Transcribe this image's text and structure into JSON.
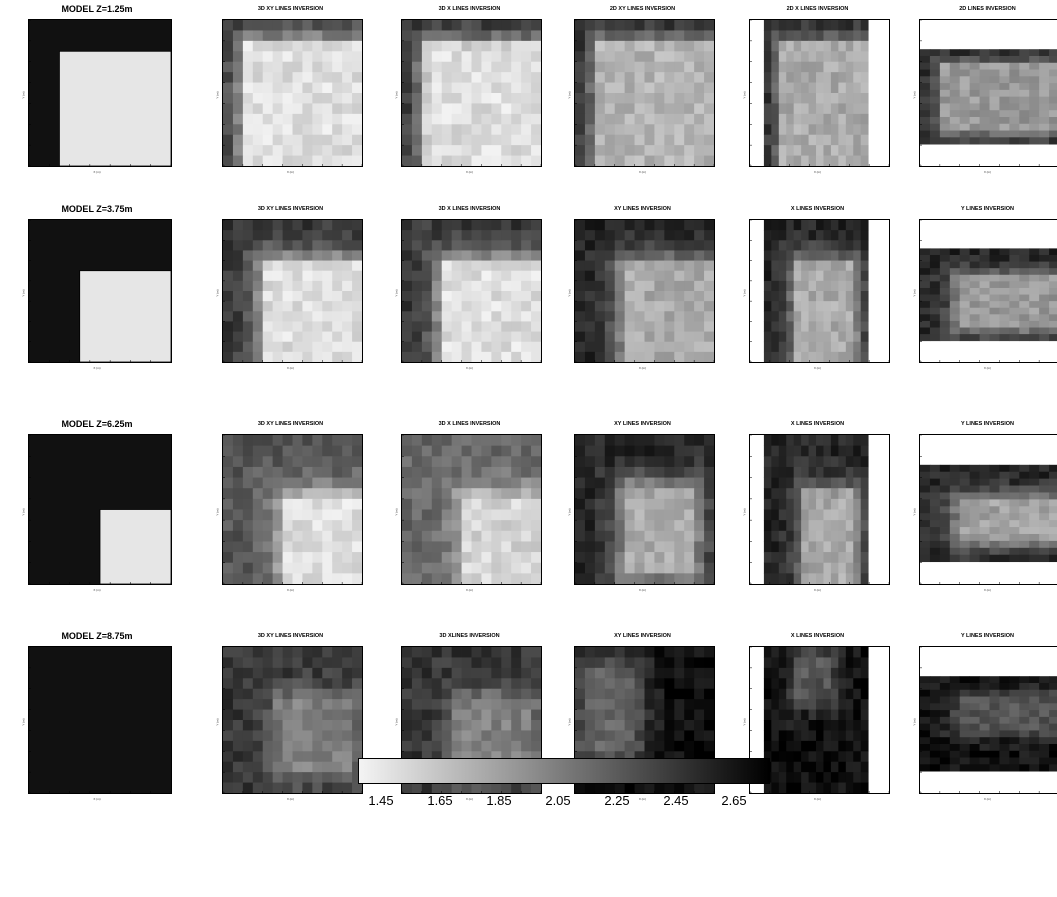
{
  "figure": {
    "panel_titles": [
      [
        "MODEL   Z=1.25m",
        "3D XY  LINES INVERSION",
        "3D X  LINES INVERSION",
        "2D XY  LINES INVERSION",
        "2D X LINES INVERSION",
        "2D LINES INVERSION"
      ],
      [
        "MODEL   Z=3.75m",
        "3D XY  LINES INVERSION",
        "3D X LINES INVERSION",
        "XY  LINES INVERSION",
        "X LINES INVERSION",
        "Y LINES INVERSION"
      ],
      [
        "MODEL   Z=6.25m",
        "3D XY  LINES INVERSION",
        "3D X LINES INVERSION",
        "XY  LINES INVERSION",
        "X LINES INVERSION",
        "Y LINES INVERSION"
      ],
      [
        "MODEL   Z=8.75m",
        "3D XY  LINES INVERSION",
        "3D XLINES INVERSION",
        "XY  LINES INVERSION",
        "X LINES INVERSION",
        "Y LINES INVERSION"
      ]
    ],
    "axis_x_label": "X (m)",
    "axis_y_label": "Y (m)"
  },
  "colorbar": {
    "tick_labels": [
      "1.45",
      "1.65",
      "1.85",
      "2.05",
      "2.25",
      "2.45",
      "2.65"
    ],
    "range": [
      1.37,
      2.8
    ],
    "colormap": [
      "#f4f4f4",
      "#000000"
    ]
  },
  "chart_data": {
    "type": "heatmap",
    "xlabel": "X (m)",
    "ylabel": "Y (m)",
    "xlim": [
      0,
      70
    ],
    "ylim": [
      0,
      70
    ],
    "value_range": [
      1.37,
      2.8
    ],
    "depths_m": [
      1.25,
      3.75,
      6.25,
      8.75
    ],
    "model": {
      "background_value": 2.7,
      "block_value": 1.45,
      "blocks": [
        {
          "depth": "Z=1.25m",
          "x": [
            15,
            70
          ],
          "y": [
            0,
            55
          ]
        },
        {
          "depth": "Z=3.75m",
          "x": [
            25,
            70
          ],
          "y": [
            0,
            45
          ]
        },
        {
          "depth": "Z=6.25m",
          "x": [
            35,
            70
          ],
          "y": [
            0,
            35
          ]
        },
        {
          "depth": "Z=8.75m",
          "x": null,
          "y": null
        }
      ]
    },
    "inversions": [
      [
        {
          "method": "3D XY",
          "block": [
            12,
            70,
            0,
            58
          ],
          "block_value": 1.5,
          "bg_value": 2.55
        },
        {
          "method": "3D X",
          "block": [
            13,
            70,
            0,
            57
          ],
          "block_value": 1.5,
          "bg_value": 2.6
        },
        {
          "method": "2D XY",
          "block": [
            12,
            70,
            0,
            58
          ],
          "block_value": 1.75,
          "bg_value": 2.65
        },
        {
          "method": "2D X",
          "block": [
            12,
            70,
            0,
            58
          ],
          "block_value": 1.8,
          "bg_value": 2.65
        },
        {
          "method": "2D Y",
          "block": [
            12,
            70,
            10,
            58
          ],
          "block_value": 1.9,
          "bg_value": 2.65
        }
      ],
      [
        {
          "method": "3D XY",
          "block": [
            22,
            70,
            0,
            48
          ],
          "block_value": 1.5,
          "bg_value": 2.5
        },
        {
          "method": "3D X",
          "block": [
            22,
            70,
            0,
            48
          ],
          "block_value": 1.5,
          "bg_value": 2.5
        },
        {
          "method": "XY",
          "block": [
            25,
            70,
            0,
            48
          ],
          "block_value": 1.8,
          "bg_value": 2.6
        },
        {
          "method": "X",
          "block": [
            22,
            60,
            0,
            48
          ],
          "block_value": 1.8,
          "bg_value": 2.6
        },
        {
          "method": "Y",
          "block": [
            20,
            70,
            10,
            48
          ],
          "block_value": 1.9,
          "bg_value": 2.6
        }
      ],
      [
        {
          "method": "3D XY",
          "block": [
            32,
            70,
            0,
            40
          ],
          "block_value": 1.5,
          "bg_value": 2.3
        },
        {
          "method": "3D X",
          "block": [
            32,
            70,
            0,
            40
          ],
          "block_value": 1.55,
          "bg_value": 2.2
        },
        {
          "method": "XY",
          "block": [
            25,
            60,
            5,
            45
          ],
          "block_value": 1.8,
          "bg_value": 2.6
        },
        {
          "method": "X",
          "block": [
            28,
            60,
            0,
            42
          ],
          "block_value": 1.8,
          "bg_value": 2.6
        },
        {
          "method": "Y",
          "block": [
            20,
            70,
            15,
            45
          ],
          "block_value": 1.85,
          "bg_value": 2.6
        }
      ],
      [
        {
          "method": "3D XY",
          "block": [
            28,
            65,
            10,
            45
          ],
          "block_value": 2.05,
          "bg_value": 2.5
        },
        {
          "method": "3D X",
          "block": [
            28,
            65,
            10,
            45
          ],
          "block_value": 2.05,
          "bg_value": 2.5
        },
        {
          "method": "XY",
          "block": [
            5,
            30,
            20,
            60
          ],
          "block_value": 2.2,
          "bg_value": 2.72
        },
        {
          "method": "X",
          "block": [
            22,
            45,
            45,
            65
          ],
          "block_value": 2.3,
          "bg_value": 2.72
        },
        {
          "method": "Y",
          "block": [
            20,
            70,
            30,
            55
          ],
          "block_value": 2.3,
          "bg_value": 2.72
        }
      ]
    ]
  }
}
